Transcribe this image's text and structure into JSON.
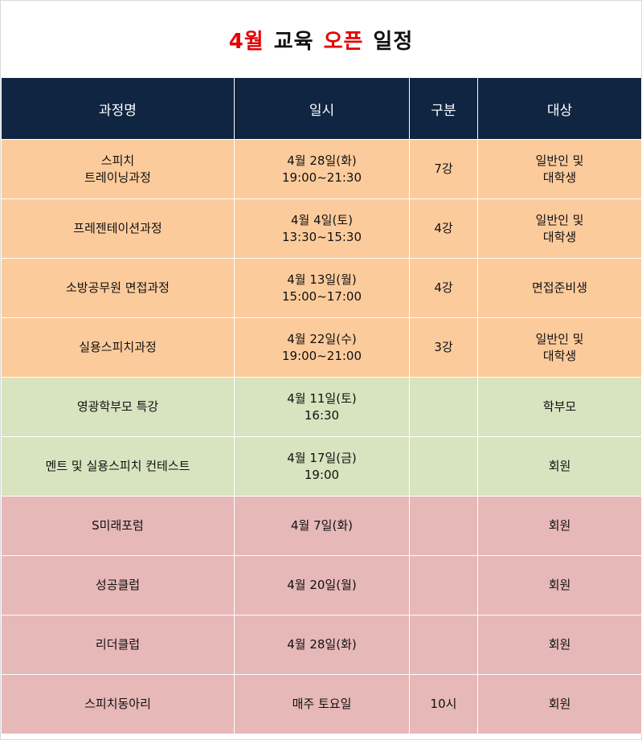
{
  "title": {
    "month": "4월",
    "edu": "교육",
    "open": "오픈",
    "schedule": "일정"
  },
  "header": {
    "course": "과정명",
    "datetime": "일시",
    "type": "구분",
    "target": "대상"
  },
  "rows": [
    {
      "group": "orange",
      "course": [
        "스피치",
        "트레이닝과정"
      ],
      "date": [
        "4월 28일(화)",
        "19:00~21:30"
      ],
      "type": "7강",
      "target": [
        "일반인 및",
        "대학생"
      ]
    },
    {
      "group": "orange",
      "course": [
        "프레젠테이션과정"
      ],
      "date": [
        "4월 4일(토)",
        "13:30~15:30"
      ],
      "type": "4강",
      "target": [
        "일반인 및",
        "대학생"
      ]
    },
    {
      "group": "orange",
      "course": [
        "소방공무원 면접과정"
      ],
      "date": [
        "4월 13일(월)",
        "15:00~17:00"
      ],
      "type": "4강",
      "target": [
        "면접준비생"
      ]
    },
    {
      "group": "orange",
      "course": [
        "실용스피치과정"
      ],
      "date": [
        "4월 22일(수)",
        "19:00~21:00"
      ],
      "type": "3강",
      "target": [
        "일반인 및",
        "대학생"
      ]
    },
    {
      "group": "green",
      "course": [
        "영광학부모 특강"
      ],
      "date": [
        "4월 11일(토)",
        "16:30"
      ],
      "type": "",
      "target": [
        "학부모"
      ]
    },
    {
      "group": "green",
      "course": [
        "멘트 및 실용스피치 컨테스트"
      ],
      "date": [
        "4월 17일(금)",
        "19:00"
      ],
      "type": "",
      "target": [
        "회원"
      ]
    },
    {
      "group": "pink",
      "course": [
        "S미래포럼"
      ],
      "date": [
        "4월 7일(화)"
      ],
      "type": "",
      "target": [
        "회원"
      ]
    },
    {
      "group": "pink",
      "course": [
        "성공클럽"
      ],
      "date": [
        "4월 20일(월)"
      ],
      "type": "",
      "target": [
        "회원"
      ]
    },
    {
      "group": "pink",
      "course": [
        "리더클럽"
      ],
      "date": [
        "4월 28일(화)"
      ],
      "type": "",
      "target": [
        "회원"
      ]
    },
    {
      "group": "pink",
      "course": [
        "스피치동아리"
      ],
      "date": [
        "매주 토요일"
      ],
      "type": "10시",
      "target": [
        "회원"
      ]
    }
  ],
  "colors": {
    "header_bg": "#0f2541",
    "orange": "#fccb9c",
    "green": "#d8e3bf",
    "pink": "#e6b8b7",
    "title_red": "#e60000"
  }
}
